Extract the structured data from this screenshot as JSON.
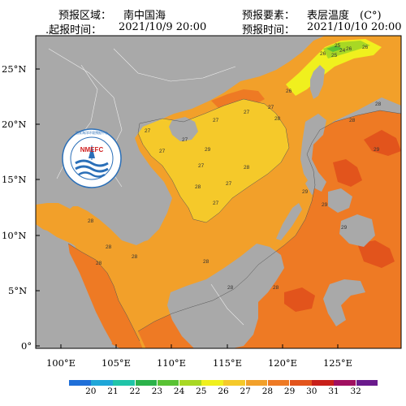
{
  "header": {
    "area_label": "预报区域：",
    "area_value": "南中国海",
    "element_label": "预报要素：",
    "element_value": "表层温度　(C°)",
    "issue_label": "起报时间：",
    "issue_value": "2021/10/9 20:00",
    "valid_label": "预报时间：",
    "valid_value": "2021/10/10 20:00",
    "issue_prefix": "."
  },
  "logo": {
    "text": "NMEFC",
    "ring_text": "国家海洋环境预报中心 NATIONAL MARINE ENVIRONMENTAL FORECASTING CENTER"
  },
  "axes": {
    "y_ticks": [
      "25°N",
      "20°N",
      "15°N",
      "10°N",
      "5°N",
      "0°"
    ],
    "x_ticks": [
      "100°E",
      "105°E",
      "110°E",
      "115°E",
      "120°E",
      "125°E"
    ]
  },
  "colorbar": {
    "labels": [
      "20",
      "21",
      "22",
      "23",
      "24",
      "25",
      "26",
      "27",
      "28",
      "29",
      "30",
      "31",
      "32"
    ],
    "colors": [
      "#1f6fd8",
      "#1fa6d8",
      "#20c4a8",
      "#2bb24a",
      "#59c234",
      "#a8d824",
      "#f0f01e",
      "#f5c92a",
      "#f2a02a",
      "#ee7a24",
      "#e2541c",
      "#c8201a",
      "#a01060",
      "#6a1a8c"
    ]
  },
  "contour_labels": [
    "27",
    "27",
    "27",
    "27",
    "27",
    "27",
    "27",
    "27",
    "27",
    "28",
    "28",
    "28",
    "28",
    "28",
    "28",
    "28",
    "28",
    "28",
    "28",
    "28",
    "28",
    "29",
    "29",
    "29",
    "29",
    "29",
    "26",
    "26",
    "26",
    "26",
    "25",
    "25",
    "24"
  ]
}
